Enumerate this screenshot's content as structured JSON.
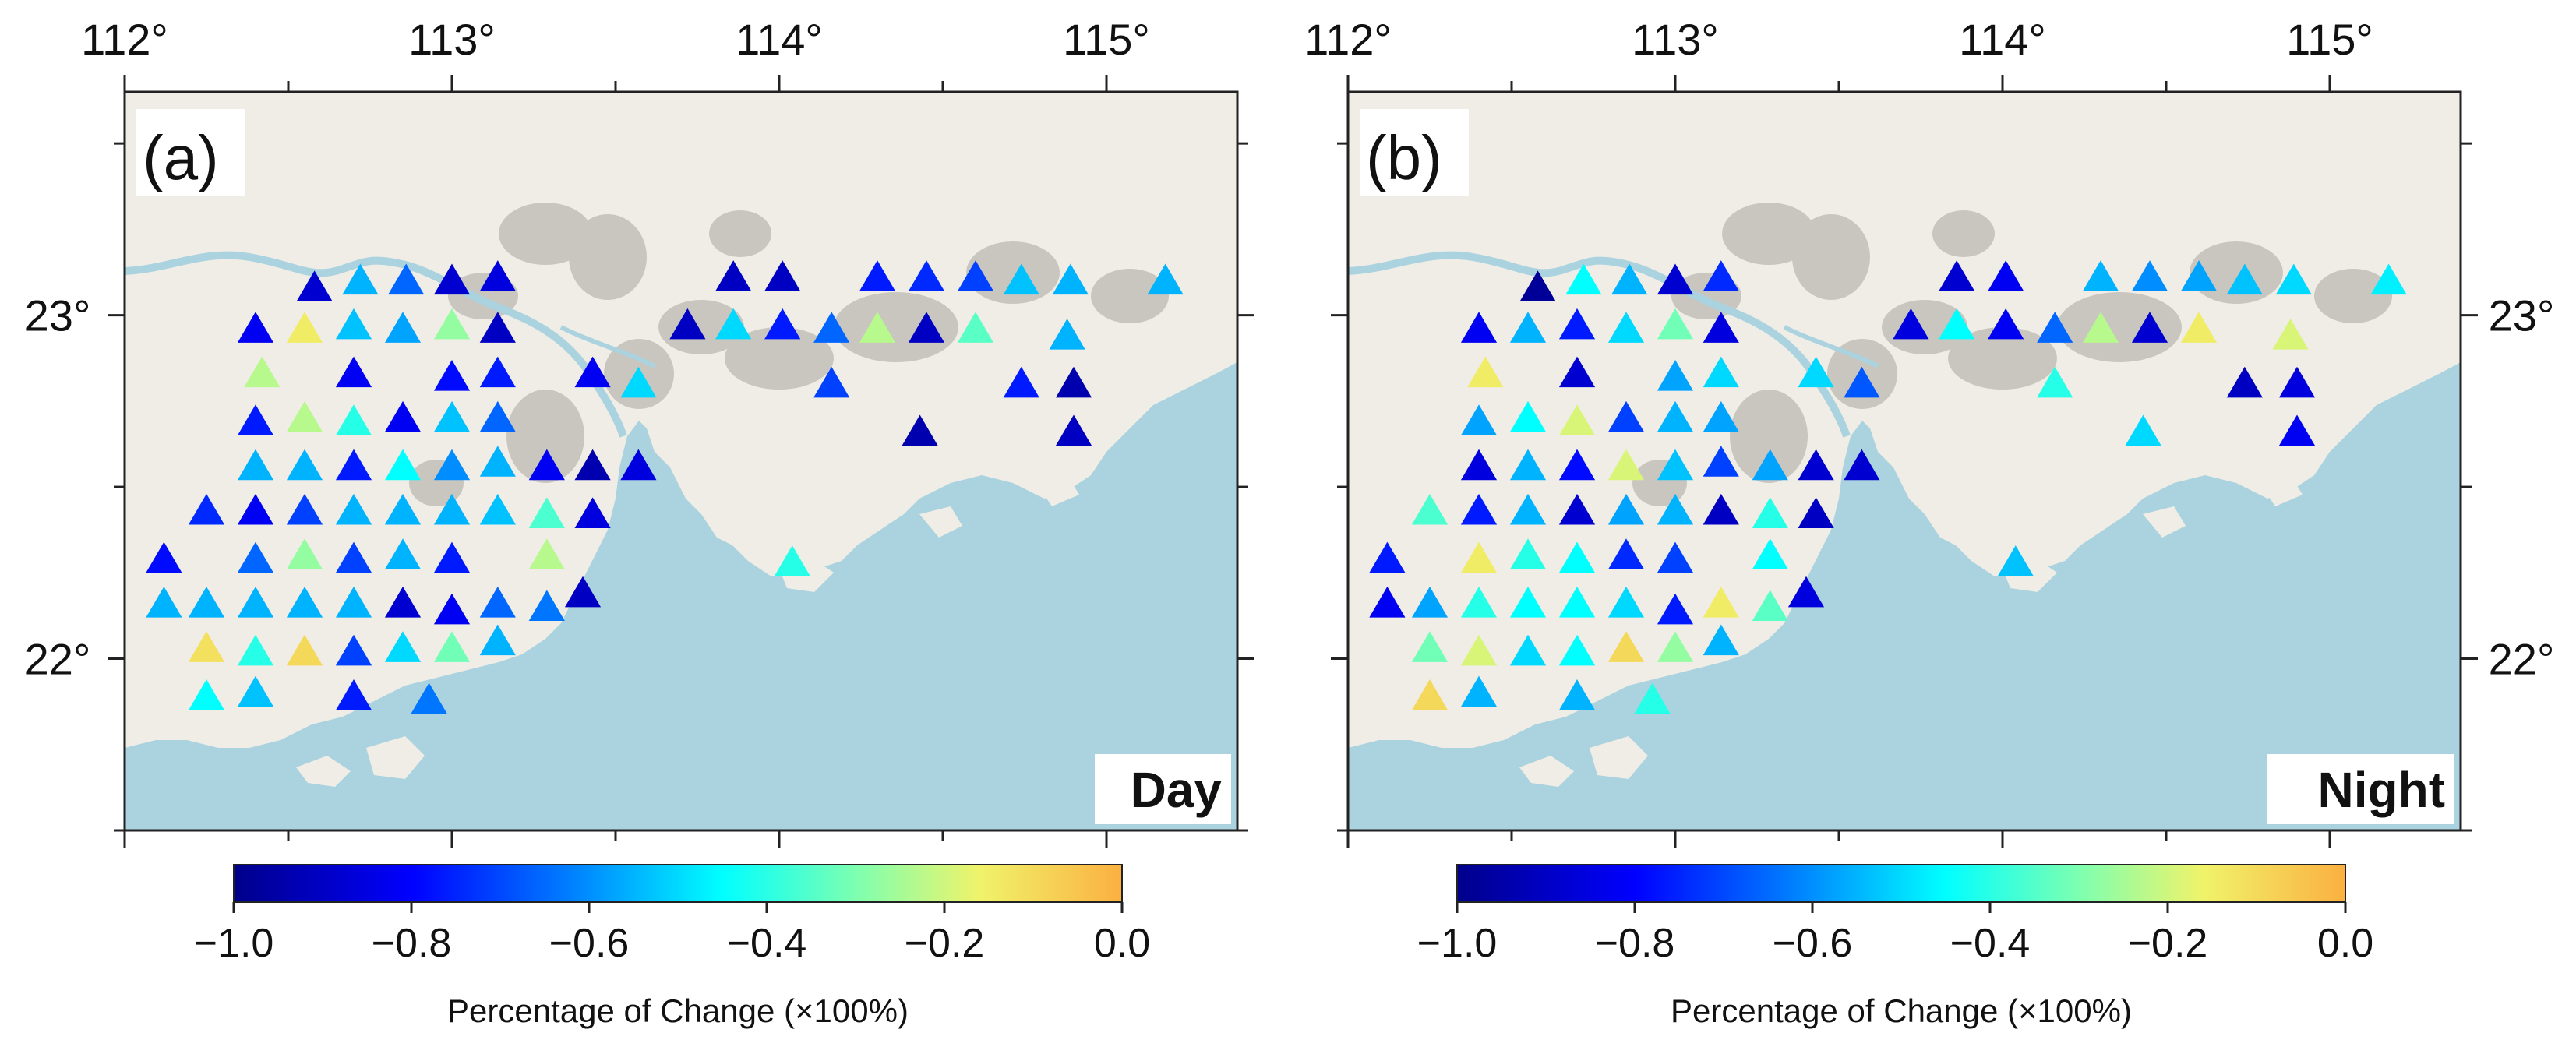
{
  "colors": {
    "land": "#f0ede6",
    "urban": "#c9c6c0",
    "sea": "#aad3df",
    "river": "#aad3df",
    "frame": "#222222",
    "colormap": [
      "#00008b",
      "#0000ff",
      "#0080ff",
      "#00ffff",
      "#7dffb0",
      "#f0f36a",
      "#fbb040"
    ]
  },
  "axes": {
    "lon_ticks": [
      112,
      113,
      114,
      115
    ],
    "lon_labels": [
      "112°",
      "113°",
      "114°",
      "115°"
    ],
    "lat_ticks": [
      22,
      23
    ],
    "lat_labels": [
      "22°",
      "23°"
    ],
    "lon_range": [
      112.0,
      115.4
    ],
    "lat_range": [
      21.5,
      23.65
    ]
  },
  "colorbar": {
    "range": [
      -1.0,
      0.0
    ],
    "tick_labels": [
      "−1.0",
      "−0.8",
      "−0.6",
      "−0.4",
      "−0.2",
      "0.0"
    ],
    "tick_values": [
      -1.0,
      -0.8,
      -0.6,
      -0.4,
      -0.2,
      0.0
    ],
    "label": "Percentage of Change (×100%)"
  },
  "panels": [
    {
      "id": "a",
      "panel_label": "(a)",
      "period": "Day",
      "stations": [
        [
          112.58,
          23.08,
          -0.9
        ],
        [
          112.72,
          23.1,
          -0.6
        ],
        [
          112.86,
          23.1,
          -0.7
        ],
        [
          113.0,
          23.1,
          -0.9
        ],
        [
          113.14,
          23.11,
          -0.88
        ],
        [
          112.4,
          22.96,
          -0.85
        ],
        [
          112.55,
          22.96,
          -0.15
        ],
        [
          112.7,
          22.97,
          -0.58
        ],
        [
          112.85,
          22.96,
          -0.62
        ],
        [
          113.0,
          22.97,
          -0.3
        ],
        [
          113.14,
          22.96,
          -0.92
        ],
        [
          112.42,
          22.83,
          -0.25
        ],
        [
          112.7,
          22.83,
          -0.85
        ],
        [
          113.0,
          22.82,
          -0.82
        ],
        [
          113.14,
          22.83,
          -0.8
        ],
        [
          113.43,
          22.83,
          -0.85
        ],
        [
          113.57,
          22.8,
          -0.55
        ],
        [
          112.4,
          22.69,
          -0.8
        ],
        [
          112.55,
          22.7,
          -0.25
        ],
        [
          112.7,
          22.69,
          -0.45
        ],
        [
          112.85,
          22.7,
          -0.85
        ],
        [
          113.0,
          22.7,
          -0.58
        ],
        [
          113.14,
          22.7,
          -0.7
        ],
        [
          112.4,
          22.56,
          -0.6
        ],
        [
          112.55,
          22.56,
          -0.6
        ],
        [
          112.7,
          22.56,
          -0.8
        ],
        [
          112.85,
          22.56,
          -0.5
        ],
        [
          113.0,
          22.56,
          -0.65
        ],
        [
          113.14,
          22.57,
          -0.6
        ],
        [
          113.29,
          22.56,
          -0.85
        ],
        [
          113.43,
          22.56,
          -0.95
        ],
        [
          113.57,
          22.56,
          -0.88
        ],
        [
          112.25,
          22.43,
          -0.78
        ],
        [
          112.4,
          22.43,
          -0.85
        ],
        [
          112.55,
          22.43,
          -0.75
        ],
        [
          112.7,
          22.43,
          -0.6
        ],
        [
          112.85,
          22.43,
          -0.6
        ],
        [
          113.0,
          22.43,
          -0.6
        ],
        [
          113.14,
          22.43,
          -0.58
        ],
        [
          113.29,
          22.42,
          -0.4
        ],
        [
          113.43,
          22.42,
          -0.88
        ],
        [
          112.12,
          22.29,
          -0.82
        ],
        [
          112.4,
          22.29,
          -0.7
        ],
        [
          112.55,
          22.3,
          -0.3
        ],
        [
          112.7,
          22.29,
          -0.75
        ],
        [
          112.85,
          22.3,
          -0.6
        ],
        [
          113.0,
          22.29,
          -0.8
        ],
        [
          113.29,
          22.3,
          -0.25
        ],
        [
          113.4,
          22.19,
          -0.92
        ],
        [
          112.12,
          22.16,
          -0.6
        ],
        [
          112.25,
          22.16,
          -0.6
        ],
        [
          112.4,
          22.16,
          -0.6
        ],
        [
          112.55,
          22.16,
          -0.6
        ],
        [
          112.7,
          22.16,
          -0.6
        ],
        [
          112.85,
          22.16,
          -0.9
        ],
        [
          113.0,
          22.14,
          -0.85
        ],
        [
          113.14,
          22.16,
          -0.7
        ],
        [
          113.29,
          22.15,
          -0.68
        ],
        [
          112.25,
          22.03,
          -0.12
        ],
        [
          112.4,
          22.02,
          -0.45
        ],
        [
          112.55,
          22.02,
          -0.1
        ],
        [
          112.7,
          22.02,
          -0.75
        ],
        [
          112.85,
          22.03,
          -0.55
        ],
        [
          113.0,
          22.03,
          -0.35
        ],
        [
          113.14,
          22.05,
          -0.6
        ],
        [
          112.25,
          21.89,
          -0.5
        ],
        [
          112.4,
          21.9,
          -0.58
        ],
        [
          112.7,
          21.89,
          -0.8
        ],
        [
          112.93,
          21.88,
          -0.68
        ],
        [
          113.86,
          23.11,
          -0.92
        ],
        [
          114.01,
          23.11,
          -0.92
        ],
        [
          114.3,
          23.11,
          -0.8
        ],
        [
          114.45,
          23.11,
          -0.78
        ],
        [
          114.6,
          23.11,
          -0.75
        ],
        [
          114.74,
          23.1,
          -0.58
        ],
        [
          114.89,
          23.1,
          -0.6
        ],
        [
          115.18,
          23.1,
          -0.6
        ],
        [
          113.72,
          22.97,
          -0.92
        ],
        [
          113.86,
          22.97,
          -0.55
        ],
        [
          114.01,
          22.97,
          -0.8
        ],
        [
          114.16,
          22.96,
          -0.7
        ],
        [
          114.3,
          22.96,
          -0.25
        ],
        [
          114.45,
          22.96,
          -0.92
        ],
        [
          114.6,
          22.96,
          -0.38
        ],
        [
          114.88,
          22.94,
          -0.6
        ],
        [
          114.16,
          22.8,
          -0.75
        ],
        [
          114.74,
          22.8,
          -0.8
        ],
        [
          114.9,
          22.8,
          -0.95
        ],
        [
          114.43,
          22.66,
          -0.95
        ],
        [
          114.9,
          22.66,
          -0.92
        ],
        [
          114.04,
          22.28,
          -0.45
        ]
      ]
    },
    {
      "id": "b",
      "panel_label": "(b)",
      "period": "Night",
      "stations": [
        [
          112.58,
          23.08,
          -0.98
        ],
        [
          112.72,
          23.1,
          -0.5
        ],
        [
          112.86,
          23.1,
          -0.6
        ],
        [
          113.0,
          23.1,
          -0.9
        ],
        [
          113.14,
          23.11,
          -0.78
        ],
        [
          112.4,
          22.96,
          -0.85
        ],
        [
          112.55,
          22.96,
          -0.6
        ],
        [
          112.7,
          22.97,
          -0.8
        ],
        [
          112.85,
          22.96,
          -0.55
        ],
        [
          113.0,
          22.97,
          -0.35
        ],
        [
          113.14,
          22.96,
          -0.88
        ],
        [
          112.42,
          22.83,
          -0.15
        ],
        [
          112.7,
          22.83,
          -0.9
        ],
        [
          113.0,
          22.82,
          -0.62
        ],
        [
          113.14,
          22.83,
          -0.55
        ],
        [
          113.43,
          22.83,
          -0.55
        ],
        [
          113.57,
          22.8,
          -0.72
        ],
        [
          112.4,
          22.69,
          -0.62
        ],
        [
          112.55,
          22.7,
          -0.5
        ],
        [
          112.7,
          22.69,
          -0.2
        ],
        [
          112.85,
          22.7,
          -0.75
        ],
        [
          113.0,
          22.7,
          -0.6
        ],
        [
          113.14,
          22.7,
          -0.62
        ],
        [
          112.4,
          22.56,
          -0.88
        ],
        [
          112.55,
          22.56,
          -0.6
        ],
        [
          112.7,
          22.56,
          -0.82
        ],
        [
          112.85,
          22.56,
          -0.2
        ],
        [
          113.0,
          22.56,
          -0.58
        ],
        [
          113.14,
          22.57,
          -0.75
        ],
        [
          113.29,
          22.56,
          -0.62
        ],
        [
          113.43,
          22.56,
          -0.9
        ],
        [
          113.57,
          22.56,
          -0.9
        ],
        [
          112.25,
          22.43,
          -0.4
        ],
        [
          112.4,
          22.43,
          -0.8
        ],
        [
          112.55,
          22.43,
          -0.6
        ],
        [
          112.7,
          22.43,
          -0.9
        ],
        [
          112.85,
          22.43,
          -0.62
        ],
        [
          113.0,
          22.43,
          -0.6
        ],
        [
          113.14,
          22.43,
          -0.92
        ],
        [
          113.29,
          22.42,
          -0.45
        ],
        [
          113.43,
          22.42,
          -0.92
        ],
        [
          112.12,
          22.29,
          -0.8
        ],
        [
          112.4,
          22.29,
          -0.15
        ],
        [
          112.55,
          22.3,
          -0.45
        ],
        [
          112.7,
          22.29,
          -0.5
        ],
        [
          112.85,
          22.3,
          -0.78
        ],
        [
          113.0,
          22.29,
          -0.75
        ],
        [
          113.29,
          22.3,
          -0.5
        ],
        [
          113.4,
          22.19,
          -0.88
        ],
        [
          112.12,
          22.16,
          -0.85
        ],
        [
          112.25,
          22.16,
          -0.62
        ],
        [
          112.4,
          22.16,
          -0.45
        ],
        [
          112.55,
          22.16,
          -0.5
        ],
        [
          112.7,
          22.16,
          -0.5
        ],
        [
          112.85,
          22.16,
          -0.55
        ],
        [
          113.0,
          22.14,
          -0.8
        ],
        [
          113.14,
          22.16,
          -0.15
        ],
        [
          113.29,
          22.15,
          -0.38
        ],
        [
          112.25,
          22.03,
          -0.35
        ],
        [
          112.4,
          22.02,
          -0.2
        ],
        [
          112.55,
          22.02,
          -0.55
        ],
        [
          112.7,
          22.02,
          -0.5
        ],
        [
          112.85,
          22.03,
          -0.1
        ],
        [
          113.0,
          22.03,
          -0.3
        ],
        [
          113.14,
          22.05,
          -0.6
        ],
        [
          112.25,
          21.89,
          -0.1
        ],
        [
          112.4,
          21.9,
          -0.6
        ],
        [
          112.7,
          21.89,
          -0.6
        ],
        [
          112.93,
          21.88,
          -0.45
        ],
        [
          113.86,
          23.11,
          -0.9
        ],
        [
          114.01,
          23.11,
          -0.85
        ],
        [
          114.3,
          23.11,
          -0.6
        ],
        [
          114.45,
          23.11,
          -0.65
        ],
        [
          114.6,
          23.11,
          -0.62
        ],
        [
          114.74,
          23.1,
          -0.58
        ],
        [
          114.89,
          23.1,
          -0.55
        ],
        [
          115.18,
          23.1,
          -0.52
        ],
        [
          113.72,
          22.97,
          -0.88
        ],
        [
          113.86,
          22.97,
          -0.5
        ],
        [
          114.01,
          22.97,
          -0.85
        ],
        [
          114.16,
          22.96,
          -0.7
        ],
        [
          114.3,
          22.96,
          -0.25
        ],
        [
          114.45,
          22.96,
          -0.9
        ],
        [
          114.6,
          22.96,
          -0.15
        ],
        [
          114.88,
          22.94,
          -0.2
        ],
        [
          114.16,
          22.8,
          -0.45
        ],
        [
          114.74,
          22.8,
          -0.92
        ],
        [
          114.9,
          22.8,
          -0.88
        ],
        [
          114.43,
          22.66,
          -0.55
        ],
        [
          114.9,
          22.66,
          -0.85
        ],
        [
          114.04,
          22.28,
          -0.58
        ]
      ]
    }
  ]
}
